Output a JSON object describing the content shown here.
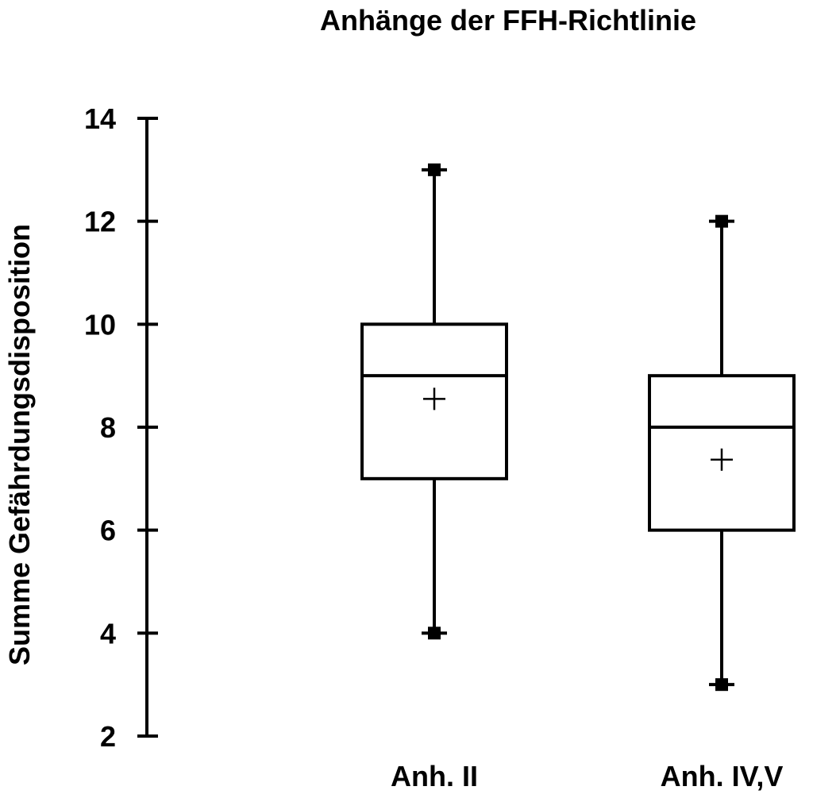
{
  "chart_data": {
    "type": "box",
    "title": "Anhänge der FFH-Richtlinie",
    "ylabel": "Summe Gefährdungsdisposition",
    "xlabel": "",
    "ylim": [
      2,
      14
    ],
    "yticks": [
      2,
      4,
      6,
      8,
      10,
      12,
      14
    ],
    "grid": false,
    "legend": "none",
    "categories": [
      "Anh. II",
      "Anh. IV,V"
    ],
    "boxes": [
      {
        "category": "Anh. II",
        "min": 4,
        "q1": 7,
        "median": 9,
        "q3": 10,
        "max": 13,
        "mean": 8.55
      },
      {
        "category": "Anh. IV,V",
        "min": 3,
        "q1": 6,
        "median": 8,
        "q3": 9,
        "max": 12,
        "mean": 7.37
      }
    ],
    "colors": {
      "stroke": "#000000",
      "background": "#ffffff"
    }
  }
}
